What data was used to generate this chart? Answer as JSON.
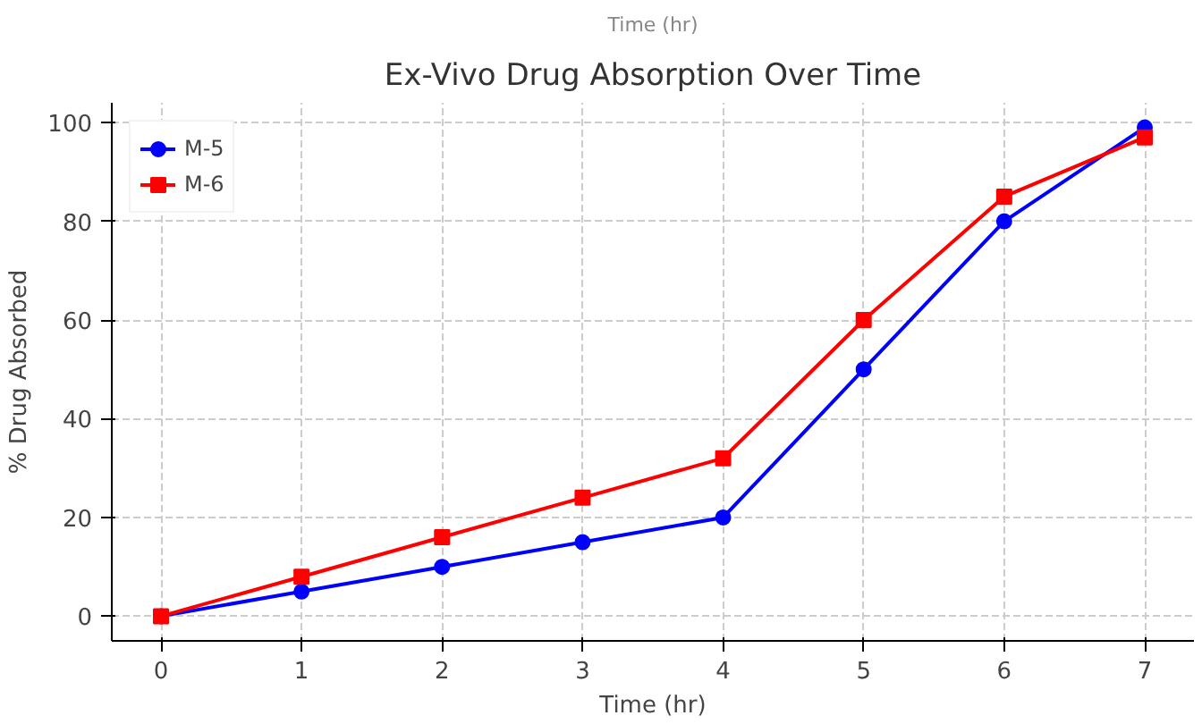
{
  "chart_data": {
    "type": "line",
    "title": "Ex-Vivo Drug Absorption Over Time",
    "xlabel": "Time (hr)",
    "ylabel": "% Drug Absorbed",
    "annotations": [
      "Time (hr)"
    ],
    "x": [
      0,
      1,
      2,
      3,
      4,
      5,
      6,
      7
    ],
    "series": [
      {
        "name": "M-5",
        "color": "#0000ff",
        "marker": "circle",
        "values": [
          0,
          5,
          10,
          15,
          20,
          50,
          80,
          99
        ]
      },
      {
        "name": "M-6",
        "color": "#ff0000",
        "marker": "square",
        "values": [
          0,
          8,
          16,
          24,
          32,
          60,
          85,
          97
        ]
      }
    ],
    "xlim": [
      -0.35,
      7.35
    ],
    "ylim": [
      -5,
      104
    ],
    "xticks": [
      0,
      1,
      2,
      3,
      4,
      5,
      6,
      7
    ],
    "yticks": [
      0,
      20,
      40,
      60,
      80,
      100
    ],
    "grid": true,
    "legend": "top left",
    "line_style": "solid"
  }
}
